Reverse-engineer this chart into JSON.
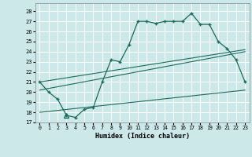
{
  "title": "",
  "xlabel": "Humidex (Indice chaleur)",
  "background_color": "#cce8e8",
  "grid_color": "#ffffff",
  "line_color": "#1a6b5a",
  "xlim": [
    -0.5,
    23.5
  ],
  "ylim": [
    17,
    28.8
  ],
  "yticks": [
    17,
    18,
    19,
    20,
    21,
    22,
    23,
    24,
    25,
    26,
    27,
    28
  ],
  "xticks": [
    0,
    1,
    2,
    3,
    4,
    5,
    6,
    7,
    8,
    9,
    10,
    11,
    12,
    13,
    14,
    15,
    16,
    17,
    18,
    19,
    20,
    21,
    22,
    23
  ],
  "main_x": [
    0,
    1,
    2,
    3,
    4,
    5,
    6,
    7,
    8,
    9,
    10,
    11,
    12,
    13,
    14,
    15,
    16,
    17,
    18,
    19,
    20,
    21,
    22,
    23
  ],
  "main_y": [
    21.0,
    20.0,
    19.3,
    17.7,
    17.5,
    18.3,
    18.5,
    21.0,
    23.2,
    23.0,
    24.7,
    27.0,
    27.0,
    26.8,
    27.0,
    27.0,
    27.0,
    27.8,
    26.7,
    26.7,
    25.0,
    24.3,
    23.2,
    21.0
  ],
  "line2_x": [
    0,
    23
  ],
  "line2_y": [
    21.0,
    24.2
  ],
  "line3_x": [
    0,
    23
  ],
  "line3_y": [
    20.2,
    24.0
  ],
  "line4_x": [
    0,
    23
  ],
  "line4_y": [
    18.0,
    20.2
  ],
  "triangle_x": [
    3
  ],
  "triangle_y": [
    17.7
  ]
}
